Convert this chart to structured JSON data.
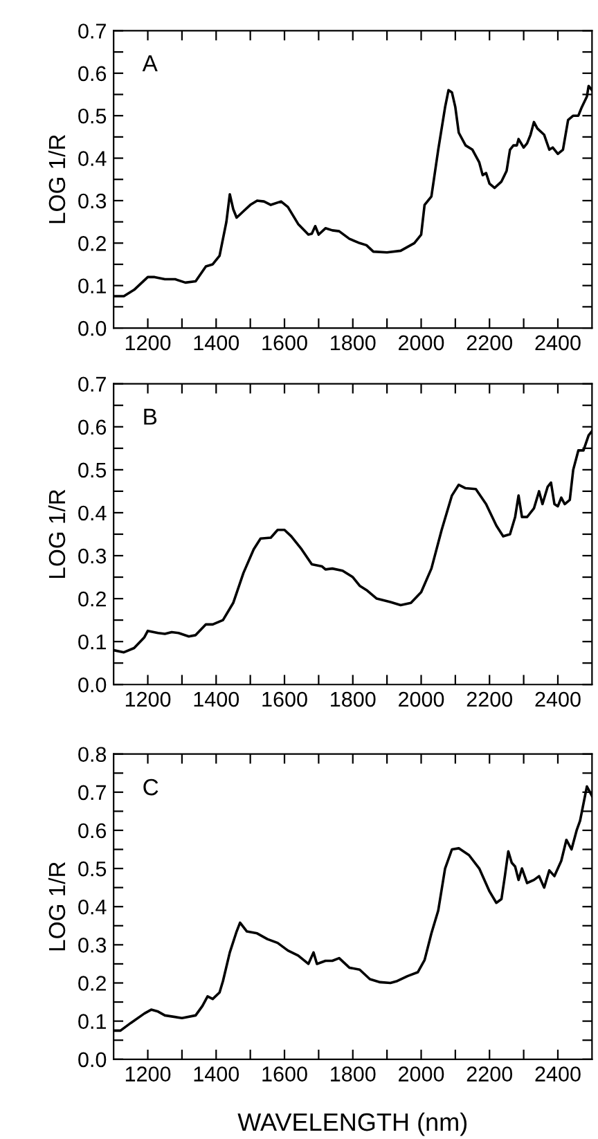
{
  "chart_data": [
    {
      "type": "line",
      "ylabel": "LOG 1/R",
      "annotations": [
        "A"
      ],
      "xlim": [
        1100,
        2500
      ],
      "ylim": [
        0.0,
        0.7
      ],
      "xticks": [
        1200,
        {
          "value": 1300,
          "label": null
        },
        1400,
        {
          "value": 1500,
          "label": null
        },
        1600,
        {
          "value": 1700,
          "label": null
        },
        1800,
        {
          "value": 1900,
          "label": null
        },
        2000,
        {
          "value": 2100,
          "label": null
        },
        2200,
        {
          "value": 2300,
          "label": null
        },
        2400
      ],
      "yticks": [
        {
          "value": 0,
          "label": "0.0"
        },
        {
          "value": 0.05,
          "label": null
        },
        0.1,
        {
          "value": 0.15,
          "label": null
        },
        0.2,
        {
          "value": 0.25,
          "label": null
        },
        0.3,
        {
          "value": 0.35,
          "label": null
        },
        0.4,
        {
          "value": 0.45,
          "label": null
        },
        0.5,
        {
          "value": 0.55,
          "label": null
        },
        0.6,
        {
          "value": 0.65,
          "label": null
        },
        0.7
      ],
      "grid": false,
      "legend": false,
      "series": [
        {
          "color": "#000000",
          "x": [
            1100,
            1130,
            1160,
            1200,
            1220,
            1250,
            1280,
            1310,
            1340,
            1370,
            1390,
            1410,
            1430,
            1440,
            1450,
            1460,
            1480,
            1500,
            1520,
            1540,
            1560,
            1590,
            1610,
            1640,
            1670,
            1680,
            1690,
            1700,
            1720,
            1740,
            1760,
            1790,
            1820,
            1840,
            1860,
            1900,
            1940,
            1980,
            2000,
            2010,
            2030,
            2050,
            2070,
            2080,
            2090,
            2100,
            2110,
            2130,
            2150,
            2170,
            2180,
            2190,
            2200,
            2215,
            2235,
            2250,
            2260,
            2270,
            2280,
            2285,
            2300,
            2310,
            2320,
            2330,
            2340,
            2360,
            2375,
            2385,
            2400,
            2415,
            2430,
            2445,
            2460,
            2470,
            2485,
            2490,
            2500
          ],
          "values": [
            0.075,
            0.075,
            0.09,
            0.12,
            0.12,
            0.115,
            0.115,
            0.107,
            0.11,
            0.145,
            0.15,
            0.17,
            0.25,
            0.315,
            0.28,
            0.26,
            0.275,
            0.29,
            0.3,
            0.298,
            0.29,
            0.298,
            0.285,
            0.245,
            0.22,
            0.222,
            0.24,
            0.22,
            0.235,
            0.23,
            0.228,
            0.21,
            0.2,
            0.195,
            0.18,
            0.178,
            0.182,
            0.2,
            0.22,
            0.29,
            0.31,
            0.42,
            0.52,
            0.56,
            0.555,
            0.52,
            0.46,
            0.43,
            0.42,
            0.39,
            0.36,
            0.365,
            0.34,
            0.33,
            0.345,
            0.37,
            0.42,
            0.43,
            0.43,
            0.445,
            0.425,
            0.435,
            0.455,
            0.485,
            0.47,
            0.455,
            0.42,
            0.425,
            0.41,
            0.42,
            0.49,
            0.5,
            0.5,
            0.52,
            0.545,
            0.57,
            0.56
          ]
        }
      ]
    },
    {
      "type": "line",
      "ylabel": "LOG 1/R",
      "annotations": [
        "B"
      ],
      "xlim": [
        1100,
        2500
      ],
      "ylim": [
        0.0,
        0.7
      ],
      "xticks": [
        1200,
        {
          "value": 1300,
          "label": null
        },
        1400,
        {
          "value": 1500,
          "label": null
        },
        1600,
        {
          "value": 1700,
          "label": null
        },
        1800,
        {
          "value": 1900,
          "label": null
        },
        2000,
        {
          "value": 2100,
          "label": null
        },
        2200,
        {
          "value": 2300,
          "label": null
        },
        2400
      ],
      "yticks": [
        {
          "value": 0,
          "label": "0.0"
        },
        {
          "value": 0.05,
          "label": null
        },
        0.1,
        {
          "value": 0.15,
          "label": null
        },
        0.2,
        {
          "value": 0.25,
          "label": null
        },
        0.3,
        {
          "value": 0.35,
          "label": null
        },
        0.4,
        {
          "value": 0.45,
          "label": null
        },
        0.5,
        {
          "value": 0.55,
          "label": null
        },
        0.6,
        {
          "value": 0.65,
          "label": null
        },
        0.7
      ],
      "grid": false,
      "legend": false,
      "series": [
        {
          "color": "#000000",
          "x": [
            1100,
            1130,
            1160,
            1190,
            1200,
            1230,
            1250,
            1270,
            1290,
            1320,
            1340,
            1370,
            1390,
            1420,
            1450,
            1480,
            1510,
            1530,
            1560,
            1580,
            1600,
            1620,
            1650,
            1680,
            1710,
            1720,
            1740,
            1770,
            1800,
            1820,
            1840,
            1870,
            1910,
            1940,
            1970,
            2000,
            2030,
            2060,
            2090,
            2110,
            2130,
            2160,
            2190,
            2220,
            2240,
            2260,
            2275,
            2285,
            2295,
            2310,
            2330,
            2345,
            2355,
            2370,
            2380,
            2390,
            2400,
            2410,
            2420,
            2435,
            2445,
            2460,
            2475,
            2490,
            2500
          ],
          "values": [
            0.08,
            0.075,
            0.085,
            0.11,
            0.125,
            0.12,
            0.118,
            0.122,
            0.12,
            0.112,
            0.115,
            0.14,
            0.14,
            0.15,
            0.19,
            0.26,
            0.315,
            0.34,
            0.342,
            0.36,
            0.36,
            0.345,
            0.315,
            0.28,
            0.275,
            0.268,
            0.27,
            0.265,
            0.25,
            0.23,
            0.22,
            0.2,
            0.192,
            0.185,
            0.19,
            0.215,
            0.27,
            0.36,
            0.44,
            0.465,
            0.457,
            0.455,
            0.42,
            0.37,
            0.345,
            0.35,
            0.39,
            0.44,
            0.39,
            0.39,
            0.41,
            0.45,
            0.42,
            0.46,
            0.47,
            0.42,
            0.415,
            0.435,
            0.42,
            0.43,
            0.5,
            0.545,
            0.545,
            0.58,
            0.59
          ]
        }
      ]
    },
    {
      "type": "line",
      "ylabel": "LOG 1/R",
      "xlabel": "WAVELENGTH (nm)",
      "annotations": [
        "C"
      ],
      "xlim": [
        1100,
        2500
      ],
      "ylim": [
        0.0,
        0.8
      ],
      "xticks": [
        1200,
        {
          "value": 1300,
          "label": null
        },
        1400,
        {
          "value": 1500,
          "label": null
        },
        1600,
        {
          "value": 1700,
          "label": null
        },
        1800,
        {
          "value": 1900,
          "label": null
        },
        2000,
        {
          "value": 2100,
          "label": null
        },
        2200,
        {
          "value": 2300,
          "label": null
        },
        2400
      ],
      "yticks": [
        {
          "value": 0,
          "label": "0.0"
        },
        {
          "value": 0.05,
          "label": null
        },
        0.1,
        {
          "value": 0.15,
          "label": null
        },
        0.2,
        {
          "value": 0.25,
          "label": null
        },
        0.3,
        {
          "value": 0.35,
          "label": null
        },
        0.4,
        {
          "value": 0.45,
          "label": null
        },
        0.5,
        {
          "value": 0.55,
          "label": null
        },
        0.6,
        {
          "value": 0.65,
          "label": null
        },
        0.7,
        {
          "value": 0.75,
          "label": null
        },
        0.8
      ],
      "grid": false,
      "legend": false,
      "series": [
        {
          "color": "#000000",
          "x": [
            1100,
            1120,
            1150,
            1190,
            1210,
            1230,
            1250,
            1300,
            1340,
            1360,
            1375,
            1390,
            1410,
            1420,
            1440,
            1460,
            1470,
            1490,
            1520,
            1550,
            1580,
            1610,
            1640,
            1670,
            1685,
            1695,
            1720,
            1740,
            1760,
            1790,
            1820,
            1850,
            1880,
            1910,
            1930,
            1960,
            1990,
            2010,
            2030,
            2050,
            2070,
            2090,
            2110,
            2140,
            2170,
            2200,
            2220,
            2235,
            2245,
            2255,
            2265,
            2275,
            2285,
            2295,
            2310,
            2330,
            2345,
            2360,
            2375,
            2390,
            2410,
            2425,
            2440,
            2455,
            2465,
            2475,
            2485,
            2500
          ],
          "values": [
            0.075,
            0.075,
            0.095,
            0.12,
            0.13,
            0.125,
            0.115,
            0.108,
            0.115,
            0.14,
            0.165,
            0.158,
            0.175,
            0.205,
            0.28,
            0.335,
            0.358,
            0.335,
            0.33,
            0.315,
            0.305,
            0.285,
            0.272,
            0.25,
            0.28,
            0.25,
            0.258,
            0.258,
            0.265,
            0.24,
            0.235,
            0.21,
            0.202,
            0.2,
            0.205,
            0.218,
            0.228,
            0.26,
            0.33,
            0.39,
            0.5,
            0.55,
            0.553,
            0.535,
            0.5,
            0.44,
            0.41,
            0.42,
            0.48,
            0.545,
            0.515,
            0.505,
            0.47,
            0.5,
            0.462,
            0.47,
            0.48,
            0.45,
            0.495,
            0.48,
            0.52,
            0.575,
            0.55,
            0.6,
            0.625,
            0.67,
            0.715,
            0.69
          ]
        }
      ]
    }
  ]
}
